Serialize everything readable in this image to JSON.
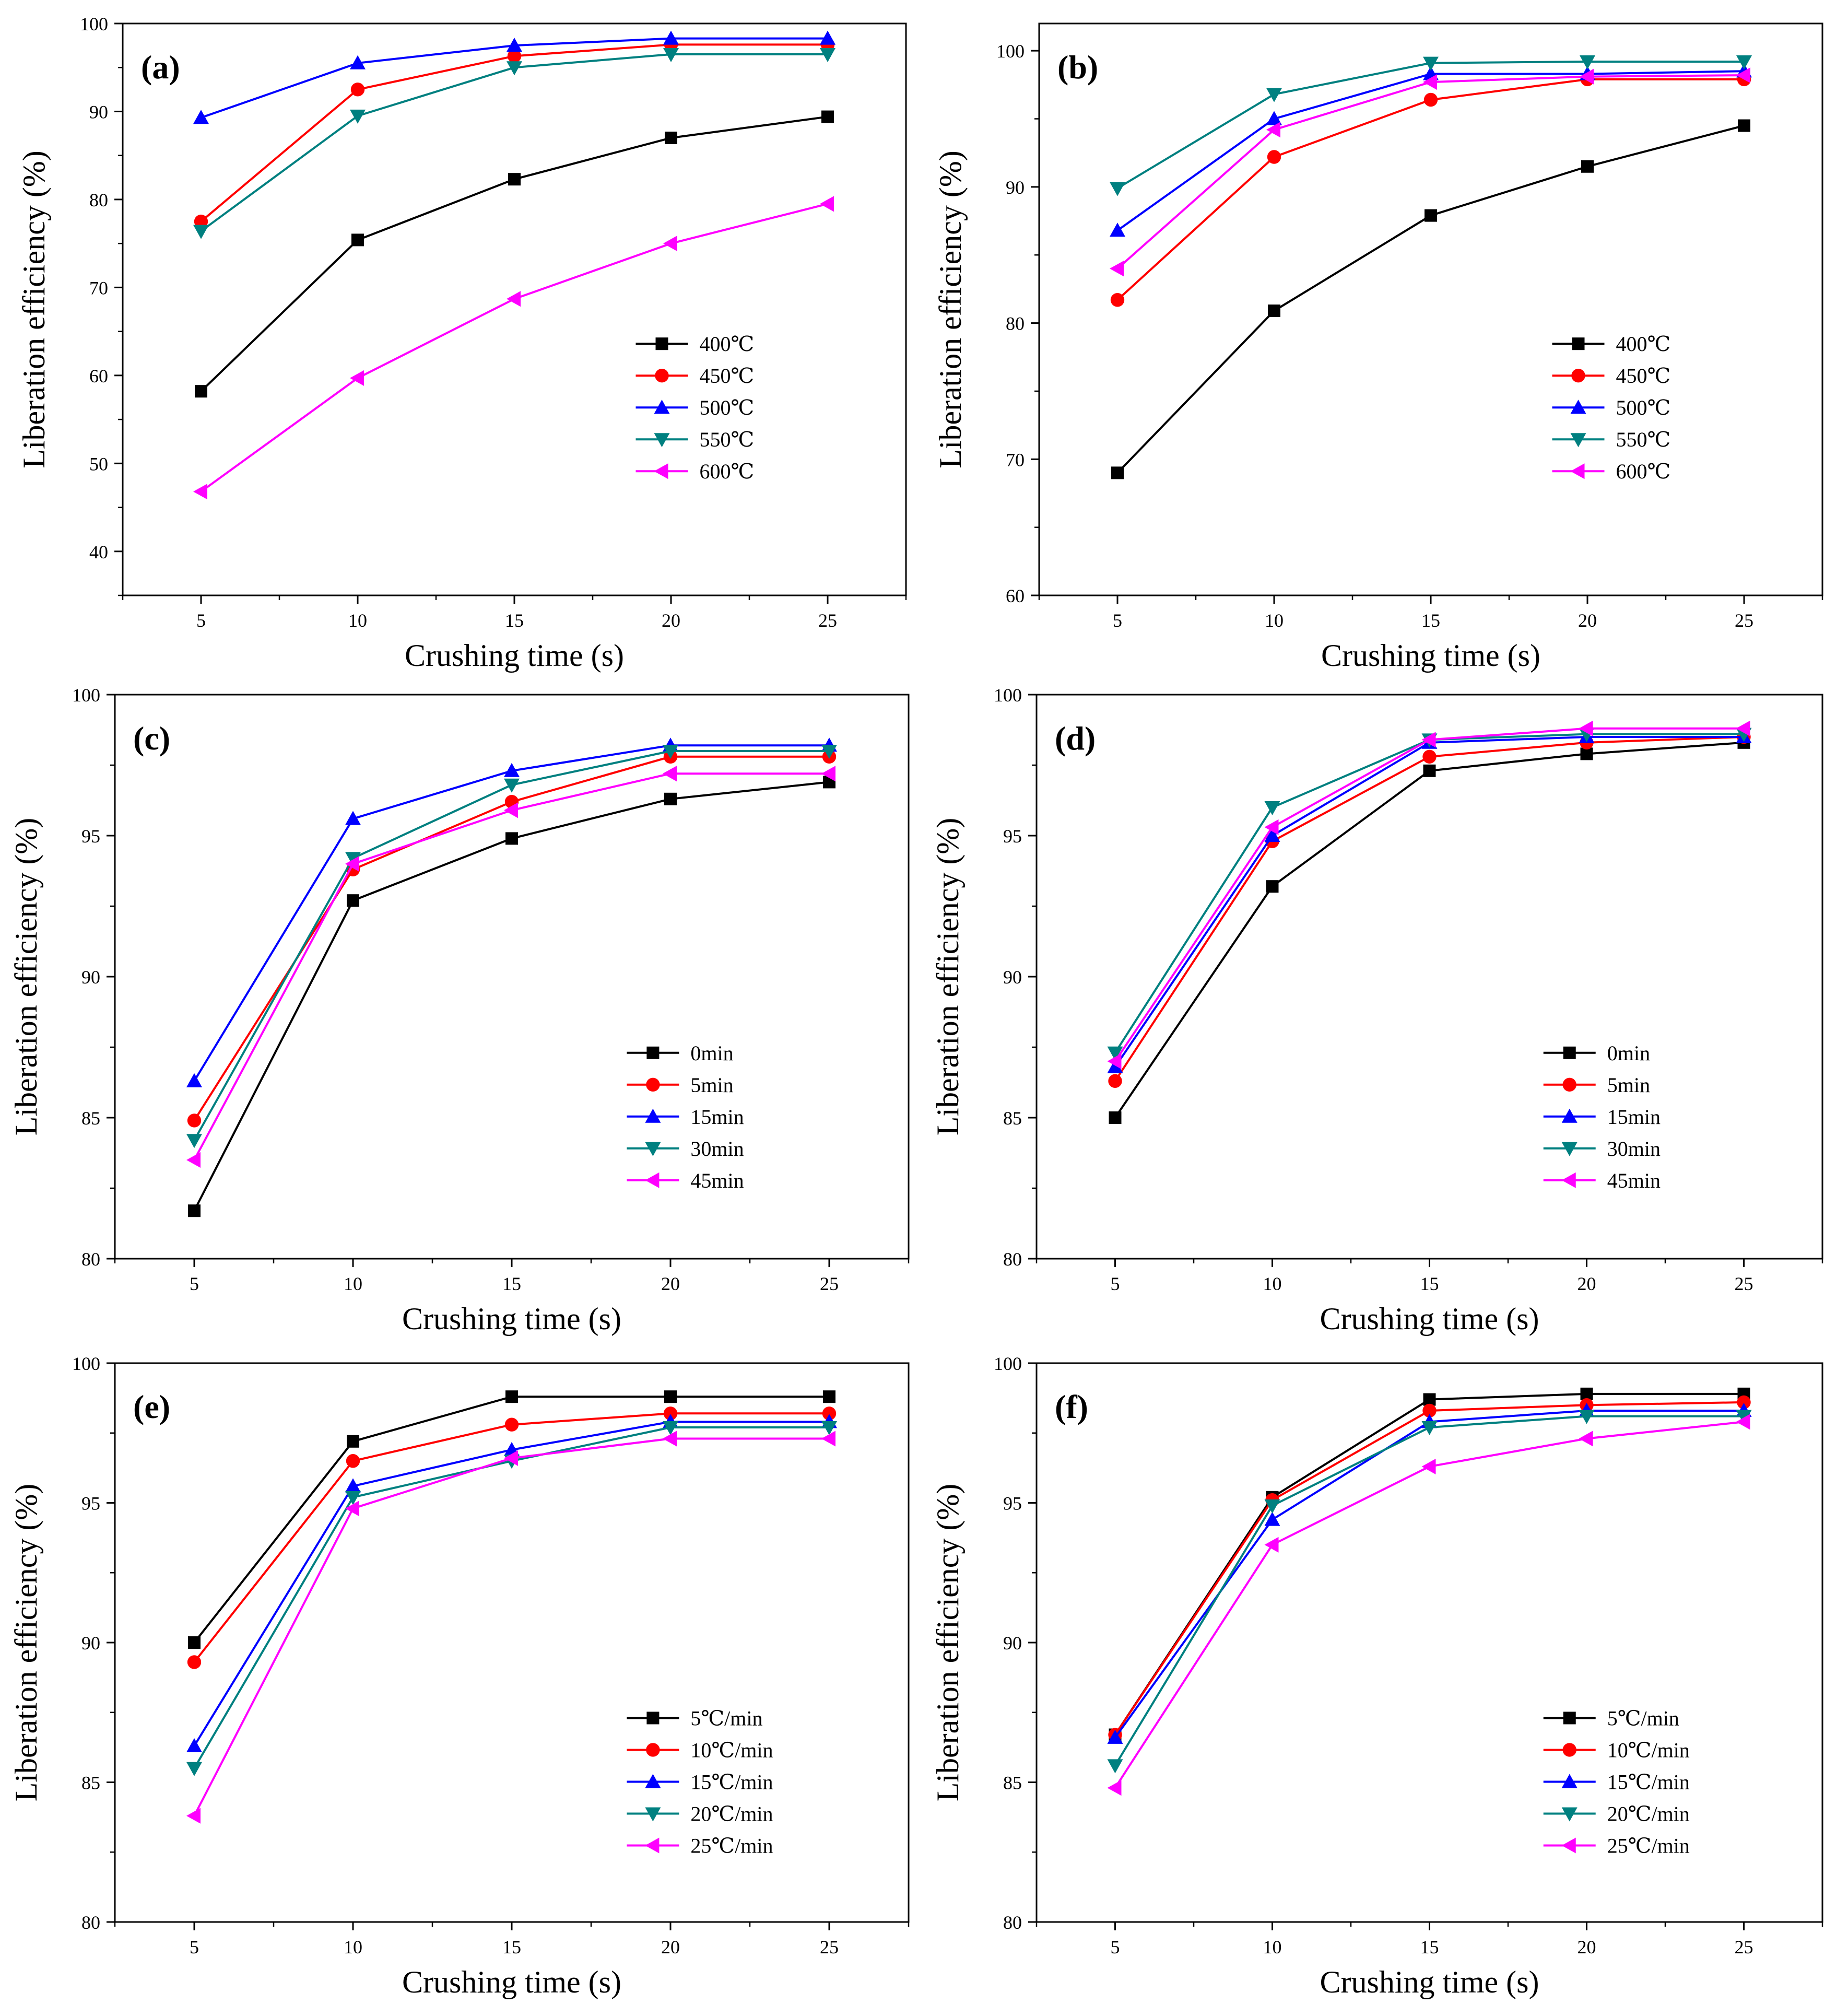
{
  "chart_data": [
    {
      "type": "line",
      "panel": "(a)",
      "xlabel": "Crushing time (s)",
      "ylabel": "Liberation efficiency (%)",
      "xlim": [
        2.5,
        27.5
      ],
      "ylim": [
        35,
        100
      ],
      "xticks": [
        5,
        10,
        15,
        20,
        25
      ],
      "yticks": [
        40,
        50,
        60,
        70,
        80,
        90,
        100
      ],
      "legend_position": "right-middle",
      "x": [
        5,
        10,
        15,
        20,
        25
      ],
      "series": [
        {
          "name": "400℃",
          "color": "#000000",
          "marker": "square",
          "values": [
            58.2,
            75.4,
            82.3,
            87.0,
            89.4
          ]
        },
        {
          "name": "450℃",
          "color": "#ff0000",
          "marker": "circle",
          "values": [
            77.5,
            92.5,
            96.3,
            97.6,
            97.6
          ]
        },
        {
          "name": "500℃",
          "color": "#0000ff",
          "marker": "triangle-up",
          "values": [
            89.3,
            95.5,
            97.5,
            98.3,
            98.3
          ]
        },
        {
          "name": "550℃",
          "color": "#008080",
          "marker": "triangle-down",
          "values": [
            76.4,
            89.5,
            95.0,
            96.5,
            96.5
          ]
        },
        {
          "name": "600℃",
          "color": "#ff00ff",
          "marker": "triangle-left",
          "values": [
            46.8,
            59.7,
            68.7,
            75.0,
            79.5
          ]
        }
      ]
    },
    {
      "type": "line",
      "panel": "(b)",
      "xlabel": "Crushing time (s)",
      "ylabel": "Liberation efficiency (%)",
      "xlim": [
        2.5,
        27.5
      ],
      "ylim": [
        60,
        102
      ],
      "xticks": [
        5,
        10,
        15,
        20,
        25
      ],
      "yticks": [
        60,
        70,
        80,
        90,
        100
      ],
      "legend_position": "right-middle",
      "x": [
        5,
        10,
        15,
        20,
        25
      ],
      "series": [
        {
          "name": "400℃",
          "color": "#000000",
          "marker": "square",
          "values": [
            69.0,
            80.9,
            87.9,
            91.5,
            94.5
          ]
        },
        {
          "name": "450℃",
          "color": "#ff0000",
          "marker": "circle",
          "values": [
            81.7,
            92.2,
            96.4,
            97.9,
            97.9
          ]
        },
        {
          "name": "500℃",
          "color": "#0000ff",
          "marker": "triangle-up",
          "values": [
            86.8,
            95.0,
            98.3,
            98.3,
            98.5
          ]
        },
        {
          "name": "550℃",
          "color": "#008080",
          "marker": "triangle-down",
          "values": [
            89.9,
            96.8,
            99.1,
            99.2,
            99.2
          ]
        },
        {
          "name": "600℃",
          "color": "#ff00ff",
          "marker": "triangle-left",
          "values": [
            84.0,
            94.2,
            97.7,
            98.1,
            98.2
          ]
        }
      ]
    },
    {
      "type": "line",
      "panel": "(c)",
      "xlabel": "Crushing time (s)",
      "ylabel": "Liberation efficiency (%)",
      "xlim": [
        2.5,
        27.5
      ],
      "ylim": [
        80,
        100
      ],
      "xticks": [
        5,
        10,
        15,
        20,
        25
      ],
      "yticks": [
        80,
        85,
        90,
        95,
        100
      ],
      "legend_position": "bottom-right",
      "x": [
        5,
        10,
        15,
        20,
        25
      ],
      "series": [
        {
          "name": "0min",
          "color": "#000000",
          "marker": "square",
          "values": [
            81.7,
            92.7,
            94.9,
            96.3,
            96.9
          ]
        },
        {
          "name": "5min",
          "color": "#ff0000",
          "marker": "circle",
          "values": [
            84.9,
            93.8,
            96.2,
            97.8,
            97.8
          ]
        },
        {
          "name": "15min",
          "color": "#0000ff",
          "marker": "triangle-up",
          "values": [
            86.3,
            95.6,
            97.3,
            98.2,
            98.2
          ]
        },
        {
          "name": "30min",
          "color": "#008080",
          "marker": "triangle-down",
          "values": [
            84.2,
            94.2,
            96.8,
            98.0,
            98.0
          ]
        },
        {
          "name": "45min",
          "color": "#ff00ff",
          "marker": "triangle-left",
          "values": [
            83.5,
            94.0,
            95.9,
            97.2,
            97.2
          ]
        }
      ]
    },
    {
      "type": "line",
      "panel": "(d)",
      "xlabel": "Crushing time (s)",
      "ylabel": "Liberation efficiency (%)",
      "xlim": [
        2.5,
        27.5
      ],
      "ylim": [
        80,
        100
      ],
      "xticks": [
        5,
        10,
        15,
        20,
        25
      ],
      "yticks": [
        80,
        85,
        90,
        95,
        100
      ],
      "legend_position": "bottom-right",
      "x": [
        5,
        10,
        15,
        20,
        25
      ],
      "series": [
        {
          "name": "0min",
          "color": "#000000",
          "marker": "square",
          "values": [
            85.0,
            93.2,
            97.3,
            97.9,
            98.3
          ]
        },
        {
          "name": "5min",
          "color": "#ff0000",
          "marker": "circle",
          "values": [
            86.3,
            94.8,
            97.8,
            98.3,
            98.5
          ]
        },
        {
          "name": "15min",
          "color": "#0000ff",
          "marker": "triangle-up",
          "values": [
            86.8,
            95.0,
            98.3,
            98.5,
            98.5
          ]
        },
        {
          "name": "30min",
          "color": "#008080",
          "marker": "triangle-down",
          "values": [
            87.3,
            96.0,
            98.4,
            98.6,
            98.6
          ]
        },
        {
          "name": "45min",
          "color": "#ff00ff",
          "marker": "triangle-left",
          "values": [
            87.0,
            95.3,
            98.4,
            98.8,
            98.8
          ]
        }
      ]
    },
    {
      "type": "line",
      "panel": "(e)",
      "xlabel": "Crushing time (s)",
      "ylabel": "Liberation efficiency (%)",
      "xlim": [
        2.5,
        27.5
      ],
      "ylim": [
        80,
        100
      ],
      "xticks": [
        5,
        10,
        15,
        20,
        25
      ],
      "yticks": [
        80,
        85,
        90,
        95,
        100
      ],
      "legend_position": "bottom-right",
      "x": [
        5,
        10,
        15,
        20,
        25
      ],
      "series": [
        {
          "name": "5℃/min",
          "color": "#000000",
          "marker": "square",
          "values": [
            90.0,
            97.2,
            98.8,
            98.8,
            98.8
          ]
        },
        {
          "name": "10℃/min",
          "color": "#ff0000",
          "marker": "circle",
          "values": [
            89.3,
            96.5,
            97.8,
            98.2,
            98.2
          ]
        },
        {
          "name": "15℃/min",
          "color": "#0000ff",
          "marker": "triangle-up",
          "values": [
            86.3,
            95.6,
            96.9,
            97.9,
            97.9
          ]
        },
        {
          "name": "20℃/min",
          "color": "#008080",
          "marker": "triangle-down",
          "values": [
            85.5,
            95.2,
            96.5,
            97.7,
            97.7
          ]
        },
        {
          "name": "25℃/min",
          "color": "#ff00ff",
          "marker": "triangle-left",
          "values": [
            83.8,
            94.8,
            96.6,
            97.3,
            97.3
          ]
        }
      ]
    },
    {
      "type": "line",
      "panel": "(f)",
      "xlabel": "Crushing time (s)",
      "ylabel": "Liberation efficiency (%)",
      "xlim": [
        2.5,
        27.5
      ],
      "ylim": [
        80,
        100
      ],
      "xticks": [
        5,
        10,
        15,
        20,
        25
      ],
      "yticks": [
        80,
        85,
        90,
        95,
        100
      ],
      "legend_position": "bottom-right",
      "x": [
        5,
        10,
        15,
        20,
        25
      ],
      "series": [
        {
          "name": "5℃/min",
          "color": "#000000",
          "marker": "square",
          "values": [
            86.7,
            95.2,
            98.7,
            98.9,
            98.9
          ]
        },
        {
          "name": "10℃/min",
          "color": "#ff0000",
          "marker": "circle",
          "values": [
            86.7,
            95.1,
            98.3,
            98.5,
            98.6
          ]
        },
        {
          "name": "15℃/min",
          "color": "#0000ff",
          "marker": "triangle-up",
          "values": [
            86.6,
            94.4,
            97.9,
            98.3,
            98.3
          ]
        },
        {
          "name": "20℃/min",
          "color": "#008080",
          "marker": "triangle-down",
          "values": [
            85.6,
            94.9,
            97.7,
            98.1,
            98.1
          ]
        },
        {
          "name": "25℃/min",
          "color": "#ff00ff",
          "marker": "triangle-left",
          "values": [
            84.8,
            93.5,
            96.3,
            97.3,
            97.9
          ]
        }
      ]
    }
  ]
}
